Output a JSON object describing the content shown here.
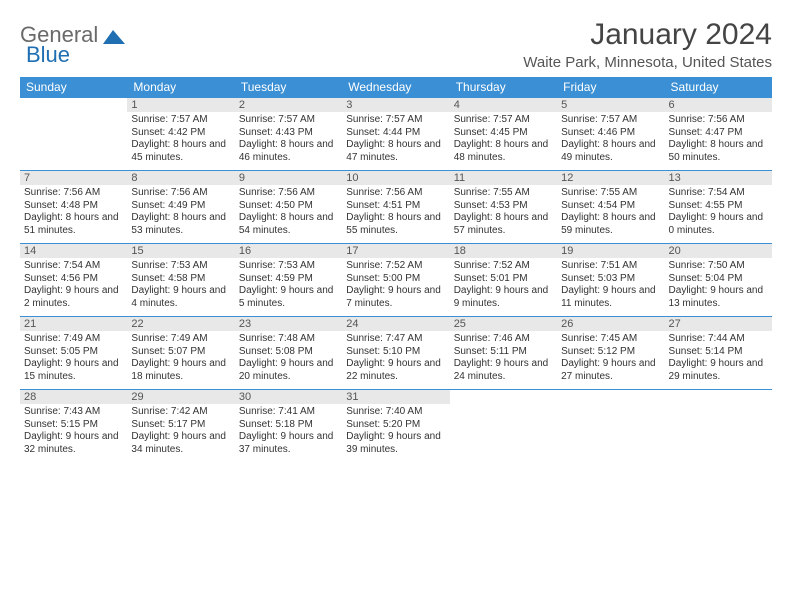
{
  "brand": {
    "word1": "General",
    "word2": "Blue"
  },
  "title": "January 2024",
  "location": "Waite Park, Minnesota, United States",
  "colors": {
    "header_bg": "#3b8fd4",
    "header_text": "#ffffff",
    "daynum_bg": "#e8e8e8",
    "daynum_text": "#555555",
    "cell_border": "#3b8fd4",
    "body_text": "#333333",
    "logo_gray": "#6a6a6a",
    "logo_blue": "#1f6fb2",
    "background": "#ffffff"
  },
  "typography": {
    "title_fontsize": 30,
    "location_fontsize": 15,
    "header_fontsize": 12,
    "daynum_fontsize": 11,
    "info_fontsize": 10
  },
  "day_labels": [
    "Sunday",
    "Monday",
    "Tuesday",
    "Wednesday",
    "Thursday",
    "Friday",
    "Saturday"
  ],
  "weeks": [
    [
      null,
      {
        "n": "1",
        "sunrise": "7:57 AM",
        "sunset": "4:42 PM",
        "daylight": "8 hours and 45 minutes."
      },
      {
        "n": "2",
        "sunrise": "7:57 AM",
        "sunset": "4:43 PM",
        "daylight": "8 hours and 46 minutes."
      },
      {
        "n": "3",
        "sunrise": "7:57 AM",
        "sunset": "4:44 PM",
        "daylight": "8 hours and 47 minutes."
      },
      {
        "n": "4",
        "sunrise": "7:57 AM",
        "sunset": "4:45 PM",
        "daylight": "8 hours and 48 minutes."
      },
      {
        "n": "5",
        "sunrise": "7:57 AM",
        "sunset": "4:46 PM",
        "daylight": "8 hours and 49 minutes."
      },
      {
        "n": "6",
        "sunrise": "7:56 AM",
        "sunset": "4:47 PM",
        "daylight": "8 hours and 50 minutes."
      }
    ],
    [
      {
        "n": "7",
        "sunrise": "7:56 AM",
        "sunset": "4:48 PM",
        "daylight": "8 hours and 51 minutes."
      },
      {
        "n": "8",
        "sunrise": "7:56 AM",
        "sunset": "4:49 PM",
        "daylight": "8 hours and 53 minutes."
      },
      {
        "n": "9",
        "sunrise": "7:56 AM",
        "sunset": "4:50 PM",
        "daylight": "8 hours and 54 minutes."
      },
      {
        "n": "10",
        "sunrise": "7:56 AM",
        "sunset": "4:51 PM",
        "daylight": "8 hours and 55 minutes."
      },
      {
        "n": "11",
        "sunrise": "7:55 AM",
        "sunset": "4:53 PM",
        "daylight": "8 hours and 57 minutes."
      },
      {
        "n": "12",
        "sunrise": "7:55 AM",
        "sunset": "4:54 PM",
        "daylight": "8 hours and 59 minutes."
      },
      {
        "n": "13",
        "sunrise": "7:54 AM",
        "sunset": "4:55 PM",
        "daylight": "9 hours and 0 minutes."
      }
    ],
    [
      {
        "n": "14",
        "sunrise": "7:54 AM",
        "sunset": "4:56 PM",
        "daylight": "9 hours and 2 minutes."
      },
      {
        "n": "15",
        "sunrise": "7:53 AM",
        "sunset": "4:58 PM",
        "daylight": "9 hours and 4 minutes."
      },
      {
        "n": "16",
        "sunrise": "7:53 AM",
        "sunset": "4:59 PM",
        "daylight": "9 hours and 5 minutes."
      },
      {
        "n": "17",
        "sunrise": "7:52 AM",
        "sunset": "5:00 PM",
        "daylight": "9 hours and 7 minutes."
      },
      {
        "n": "18",
        "sunrise": "7:52 AM",
        "sunset": "5:01 PM",
        "daylight": "9 hours and 9 minutes."
      },
      {
        "n": "19",
        "sunrise": "7:51 AM",
        "sunset": "5:03 PM",
        "daylight": "9 hours and 11 minutes."
      },
      {
        "n": "20",
        "sunrise": "7:50 AM",
        "sunset": "5:04 PM",
        "daylight": "9 hours and 13 minutes."
      }
    ],
    [
      {
        "n": "21",
        "sunrise": "7:49 AM",
        "sunset": "5:05 PM",
        "daylight": "9 hours and 15 minutes."
      },
      {
        "n": "22",
        "sunrise": "7:49 AM",
        "sunset": "5:07 PM",
        "daylight": "9 hours and 18 minutes."
      },
      {
        "n": "23",
        "sunrise": "7:48 AM",
        "sunset": "5:08 PM",
        "daylight": "9 hours and 20 minutes."
      },
      {
        "n": "24",
        "sunrise": "7:47 AM",
        "sunset": "5:10 PM",
        "daylight": "9 hours and 22 minutes."
      },
      {
        "n": "25",
        "sunrise": "7:46 AM",
        "sunset": "5:11 PM",
        "daylight": "9 hours and 24 minutes."
      },
      {
        "n": "26",
        "sunrise": "7:45 AM",
        "sunset": "5:12 PM",
        "daylight": "9 hours and 27 minutes."
      },
      {
        "n": "27",
        "sunrise": "7:44 AM",
        "sunset": "5:14 PM",
        "daylight": "9 hours and 29 minutes."
      }
    ],
    [
      {
        "n": "28",
        "sunrise": "7:43 AM",
        "sunset": "5:15 PM",
        "daylight": "9 hours and 32 minutes."
      },
      {
        "n": "29",
        "sunrise": "7:42 AM",
        "sunset": "5:17 PM",
        "daylight": "9 hours and 34 minutes."
      },
      {
        "n": "30",
        "sunrise": "7:41 AM",
        "sunset": "5:18 PM",
        "daylight": "9 hours and 37 minutes."
      },
      {
        "n": "31",
        "sunrise": "7:40 AM",
        "sunset": "5:20 PM",
        "daylight": "9 hours and 39 minutes."
      },
      null,
      null,
      null
    ]
  ]
}
